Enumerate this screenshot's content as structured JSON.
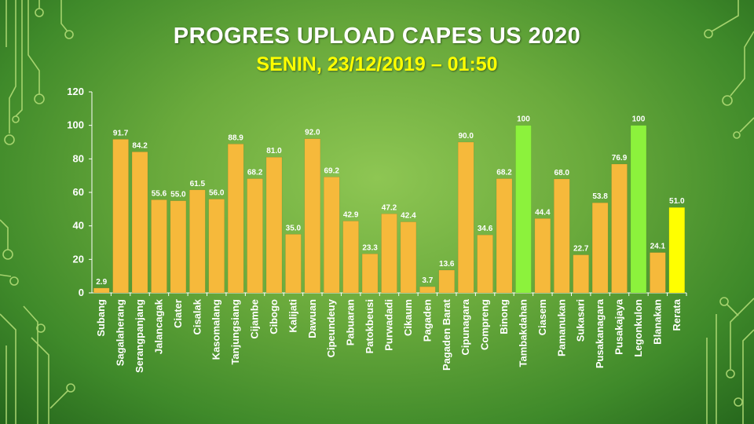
{
  "title": "PROGRES UPLOAD CAPES US 2020",
  "subtitle": "SENIN, 23/12/2019 – 01:50",
  "colors": {
    "bar_default": "#f6b93b",
    "bar_full": "#8cf23c",
    "bar_average": "#ffff00"
  },
  "chart_data": {
    "type": "bar",
    "title": "PROGRES UPLOAD CAPES US 2020",
    "subtitle": "SENIN, 23/12/2019 – 01:50",
    "categories": [
      "Subang",
      "Sagalaherang",
      "Serangpanjang",
      "Jalancagak",
      "Ciater",
      "Cisalak",
      "Kasomalang",
      "Tanjungsiang",
      "Cijambe",
      "Cibogo",
      "Kalijati",
      "Dawuan",
      "Cipeundeuy",
      "Pabuaran",
      "Patokbeusi",
      "Purwadadi",
      "Cikaum",
      "Pagaden",
      "Pagaden Barat",
      "Cipunagara",
      "Compreng",
      "Binong",
      "Tambakdahan",
      "Ciasem",
      "Pamanukan",
      "Sukasari",
      "Pusakanagara",
      "Pusakajaya",
      "Legonkulon",
      "Blanakan",
      "Rerata"
    ],
    "values": [
      2.9,
      91.7,
      84.2,
      55.6,
      55.0,
      61.5,
      56.0,
      88.9,
      68.2,
      81.0,
      35.0,
      92.0,
      69.2,
      42.9,
      23.3,
      47.2,
      42.4,
      3.7,
      13.6,
      90.0,
      34.6,
      68.2,
      100,
      44.4,
      68.0,
      22.7,
      53.8,
      76.9,
      100,
      24.1,
      51.0
    ],
    "value_labels": [
      "2.9",
      "91.7",
      "84.2",
      "55.6",
      "55.0",
      "61.5",
      "56.0",
      "88.9",
      "68.2",
      "81.0",
      "35.0",
      "92.0",
      "69.2",
      "42.9",
      "23.3",
      "47.2",
      "42.4",
      "3.7",
      "13.6",
      "90.0",
      "34.6",
      "68.2",
      "100",
      "44.4",
      "68.0",
      "22.7",
      "53.8",
      "76.9",
      "100",
      "24.1",
      "51.0"
    ],
    "yticks": [
      0,
      20,
      40,
      60,
      80,
      100,
      120
    ],
    "ylim": [
      0,
      120
    ],
    "xlabel": "",
    "ylabel": "",
    "grid": false,
    "legend": "none"
  }
}
